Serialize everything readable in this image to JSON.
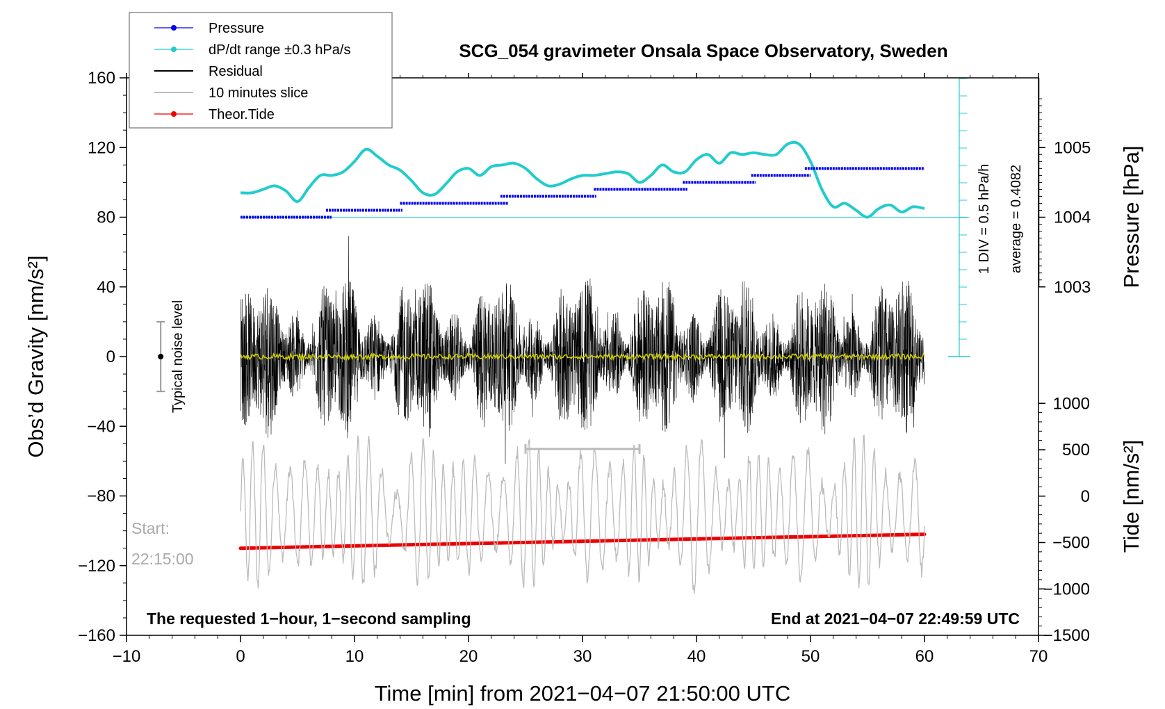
{
  "chart_data": {
    "type": "line",
    "title": "SCG_054 gravimeter Onsala Space Observatory, Sweden",
    "xlabel": "Time [min] from 2021−04−07 21:50:00 UTC",
    "ylabel_left": "Obs’d Gravity [nm/s²]",
    "ylabel_right_top": "Pressure [hPa]",
    "ylabel_right_bottom": "Tide [nm/s²]",
    "xlim": [
      -10,
      70
    ],
    "ylim": [
      -160,
      160
    ],
    "x_ticks": [
      -10,
      0,
      10,
      20,
      30,
      40,
      50,
      60,
      70
    ],
    "x_tick_labels": [
      "−10",
      "0",
      "10",
      "20",
      "30",
      "40",
      "50",
      "60",
      "70"
    ],
    "y_ticks": [
      -160,
      -120,
      -80,
      -40,
      0,
      40,
      80,
      120,
      160
    ],
    "y_tick_labels": [
      "−160",
      "−120",
      "−80",
      "−40",
      "0",
      "40",
      "80",
      "120",
      "160"
    ],
    "pressure_axis": {
      "ticks": [
        1003,
        1004,
        1005
      ],
      "tick_labels": [
        "1003",
        "1004",
        "1005"
      ],
      "gravity_per_hpa": 40,
      "zero_hpa": 1004,
      "zero_gravity": 80
    },
    "tide_axis": {
      "ticks": [
        -1500,
        -1000,
        -500,
        0,
        500,
        1000
      ],
      "tick_labels": [
        "−1500",
        "−1000",
        "−500",
        "0",
        "500",
        "1000"
      ]
    },
    "legend": {
      "position": "top-left",
      "entries": [
        {
          "label": "Pressure",
          "color": "#0000ee",
          "marker": "dot"
        },
        {
          "label": "dP/dt range ±0.3 hPa/s",
          "color": "#22cccc",
          "marker": "dot"
        },
        {
          "label": "Residual",
          "color": "#000000",
          "marker": "line"
        },
        {
          "label": "10 minutes slice",
          "color": "#bbbbbb",
          "marker": "line"
        },
        {
          "label": "Theor.Tide",
          "color": "#ee0000",
          "marker": "dot"
        }
      ]
    },
    "series": [
      {
        "name": "Pressure",
        "color": "#0000ee",
        "unit": "hPa",
        "steps": [
          {
            "x_start": 0,
            "x_end": 8,
            "value": 1004.0
          },
          {
            "x_start": 7.5,
            "x_end": 14.2,
            "value": 1004.1
          },
          {
            "x_start": 14,
            "x_end": 23.5,
            "value": 1004.2
          },
          {
            "x_start": 22.8,
            "x_end": 31.2,
            "value": 1004.3
          },
          {
            "x_start": 31,
            "x_end": 39.2,
            "value": 1004.4
          },
          {
            "x_start": 38.8,
            "x_end": 45.2,
            "value": 1004.5
          },
          {
            "x_start": 44.8,
            "x_end": 50,
            "value": 1004.6
          },
          {
            "x_start": 49.5,
            "x_end": 60,
            "value": 1004.7
          }
        ]
      },
      {
        "name": "dP/dt range ±0.3 hPa/s",
        "color": "#22cccc",
        "x": [
          0,
          1,
          2,
          3,
          4,
          5,
          6,
          7,
          8,
          9,
          10,
          11,
          12,
          13,
          14,
          15,
          16,
          17,
          18,
          19,
          20,
          21,
          22,
          23,
          24,
          25,
          26,
          27,
          28,
          29,
          30,
          31,
          32,
          33,
          34,
          35,
          36,
          37,
          38,
          39,
          40,
          41,
          42,
          43,
          44,
          45,
          46,
          47,
          48,
          49,
          50,
          51,
          52,
          53,
          54,
          55,
          56,
          57,
          58,
          59,
          60
        ],
        "values": [
          94,
          94,
          96,
          98,
          95,
          89,
          97,
          104,
          104,
          106,
          112,
          119,
          115,
          110,
          107,
          101,
          94,
          93,
          99,
          106,
          108,
          104,
          109,
          110,
          111,
          108,
          102,
          98,
          99,
          102,
          104,
          104,
          105,
          106,
          105,
          100,
          104,
          110,
          106,
          106,
          113,
          116,
          111,
          117,
          116,
          117,
          116,
          116,
          122,
          122,
          112,
          96,
          86,
          88,
          84,
          80,
          85,
          87,
          83,
          86,
          85
        ]
      },
      {
        "name": "Residual",
        "color": "#000000",
        "amplitude_approx": 50,
        "min": -62,
        "max": 70
      },
      {
        "name": "Residual mean",
        "color": "#cccc00",
        "value_approx": 0
      },
      {
        "name": "10 minutes slice",
        "color": "#bbbbbb",
        "center_approx": -90,
        "amplitude_approx": 35,
        "slice_x": [
          25,
          35
        ],
        "slice_y": -53
      },
      {
        "name": "Theor.Tide",
        "color": "#ee0000",
        "x": [
          0,
          60
        ],
        "values": [
          -110,
          -102
        ]
      }
    ],
    "noise_marker": {
      "x": -7,
      "center": 0,
      "range": [
        -20,
        20
      ],
      "label": "Typical noise level"
    },
    "annotations": {
      "start_label_1": "Start:",
      "start_label_2": "22:15:00",
      "bottom_left": "The requested 1−hour, 1−second sampling",
      "bottom_right": "End at 2021−04−07 22:49:59 UTC",
      "div_label": "1 DIV = 0.5 hPa/h",
      "average_label": "average = 0.4082"
    }
  }
}
